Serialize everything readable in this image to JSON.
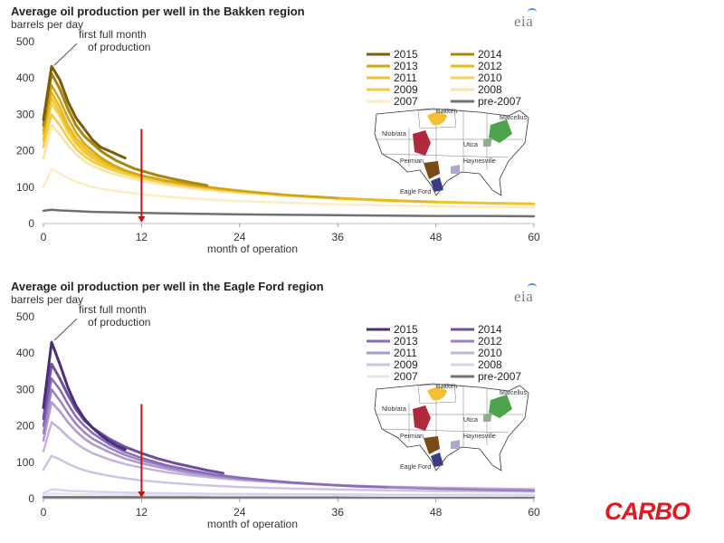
{
  "logo": {
    "text": "CARBO",
    "color": "#e01a22"
  },
  "chart_data": [
    {
      "type": "line",
      "title": "Average oil production per well in the Bakken region",
      "ylabel": "barrels per day",
      "xlabel": "month of operation",
      "source_logo": "eia",
      "xlim": [
        0,
        60
      ],
      "ylim": [
        0,
        500
      ],
      "xticks": [
        0,
        12,
        24,
        36,
        48,
        60
      ],
      "yticks": [
        0,
        100,
        200,
        300,
        400,
        500
      ],
      "annotation": {
        "text_line1": "first full month",
        "text_line2": "of production",
        "x": 1,
        "y": 430
      },
      "marker_line": {
        "x": 12,
        "from": 260,
        "to": 0,
        "color": "#cc1010"
      },
      "legend": {
        "placement": "top-right",
        "columns": 2
      },
      "map": {
        "labels": [
          "Bakken",
          "Marcellus",
          "Niobrara",
          "Utica",
          "Permian",
          "Haynesville",
          "Eagle Ford"
        ]
      },
      "series": [
        {
          "name": "2015",
          "color": "#7a5c0a",
          "width": 3,
          "x": [
            0,
            1,
            2,
            3,
            4,
            5,
            6,
            7,
            8,
            9,
            10
          ],
          "values": [
            285,
            432,
            395,
            335,
            290,
            260,
            230,
            210,
            200,
            190,
            180
          ]
        },
        {
          "name": "2014",
          "color": "#a8860e",
          "width": 3,
          "x": [
            0,
            1,
            2,
            3,
            4,
            5,
            6,
            7,
            8,
            9,
            10,
            11,
            12,
            14,
            16,
            18,
            20
          ],
          "values": [
            270,
            412,
            370,
            315,
            270,
            240,
            220,
            200,
            185,
            172,
            162,
            152,
            145,
            132,
            122,
            113,
            105
          ]
        },
        {
          "name": "2013",
          "color": "#cfa516",
          "width": 2.5,
          "x": [
            0,
            1,
            2,
            3,
            4,
            5,
            6,
            7,
            8,
            9,
            10,
            12,
            15,
            18,
            21,
            24,
            27,
            30,
            33,
            36
          ],
          "values": [
            255,
            380,
            340,
            290,
            250,
            220,
            200,
            182,
            168,
            156,
            146,
            132,
            118,
            107,
            98,
            90,
            84,
            78,
            74,
            70
          ]
        },
        {
          "name": "2012",
          "color": "#e7b91a",
          "width": 2.5,
          "x": [
            0,
            1,
            2,
            3,
            4,
            5,
            6,
            8,
            10,
            12,
            15,
            18,
            21,
            24,
            30,
            36,
            42,
            48
          ],
          "values": [
            245,
            360,
            320,
            270,
            235,
            210,
            190,
            162,
            145,
            132,
            118,
            107,
            98,
            90,
            78,
            70,
            64,
            59
          ]
        },
        {
          "name": "2011",
          "color": "#f0c22c",
          "width": 2.5,
          "x": [
            0,
            1,
            2,
            3,
            4,
            5,
            6,
            8,
            10,
            12,
            15,
            18,
            21,
            24,
            30,
            36,
            42,
            48,
            54,
            60
          ],
          "values": [
            230,
            345,
            305,
            260,
            225,
            200,
            182,
            158,
            142,
            130,
            116,
            105,
            96,
            89,
            78,
            70,
            64,
            59,
            56,
            54
          ]
        },
        {
          "name": "2010",
          "color": "#f5d25a",
          "width": 2.5,
          "x": [
            0,
            1,
            2,
            3,
            4,
            5,
            6,
            8,
            10,
            12,
            15,
            18,
            21,
            24,
            30,
            36,
            42,
            48,
            54,
            60
          ],
          "values": [
            225,
            330,
            295,
            250,
            218,
            195,
            178,
            155,
            140,
            128,
            115,
            104,
            96,
            89,
            78,
            70,
            64,
            60,
            57,
            55
          ]
        },
        {
          "name": "2009",
          "color": "#f3c93e",
          "width": 2.5,
          "x": [
            0,
            1,
            2,
            3,
            4,
            5,
            6,
            8,
            10,
            12,
            15,
            18,
            21,
            24,
            30,
            36,
            42,
            48,
            54,
            60
          ],
          "values": [
            210,
            300,
            270,
            235,
            205,
            185,
            170,
            150,
            136,
            125,
            112,
            102,
            94,
            87,
            77,
            69,
            63,
            59,
            56,
            54
          ]
        },
        {
          "name": "2008",
          "color": "#f9e4a2",
          "width": 2.5,
          "x": [
            0,
            1,
            2,
            3,
            4,
            5,
            6,
            8,
            10,
            12,
            15,
            18,
            21,
            24,
            30,
            36,
            42,
            48,
            54,
            60
          ],
          "values": [
            180,
            270,
            245,
            215,
            190,
            172,
            158,
            140,
            128,
            118,
            106,
            97,
            90,
            84,
            75,
            68,
            62,
            58,
            55,
            53
          ]
        },
        {
          "name": "2007",
          "color": "#fbedc4",
          "width": 2.5,
          "x": [
            0,
            1,
            2,
            3,
            4,
            5,
            6,
            8,
            10,
            12,
            15,
            18,
            21,
            24,
            30,
            36,
            42,
            48,
            54,
            60
          ],
          "values": [
            100,
            150,
            138,
            125,
            115,
            107,
            100,
            92,
            86,
            80,
            74,
            69,
            65,
            62,
            57,
            53,
            50,
            47,
            45,
            44
          ]
        },
        {
          "name": "pre-2007",
          "color": "#707070",
          "width": 2.5,
          "x": [
            0,
            1,
            2,
            3,
            4,
            6,
            8,
            10,
            12,
            15,
            18,
            21,
            24,
            30,
            36,
            42,
            48,
            54,
            60
          ],
          "values": [
            35,
            38,
            36,
            35,
            34,
            32,
            31,
            30,
            29,
            28,
            27,
            26,
            25,
            24,
            23,
            22,
            21,
            21,
            20
          ]
        }
      ]
    },
    {
      "type": "line",
      "title": "Average oil production per well in the Eagle Ford region",
      "ylabel": "barrels per day",
      "xlabel": "month of operation",
      "source_logo": "eia",
      "xlim": [
        0,
        60
      ],
      "ylim": [
        0,
        500
      ],
      "xticks": [
        0,
        12,
        24,
        36,
        48,
        60
      ],
      "yticks": [
        0,
        100,
        200,
        300,
        400,
        500
      ],
      "annotation": {
        "text_line1": "first full month",
        "text_line2": "of production",
        "x": 1,
        "y": 430
      },
      "marker_line": {
        "x": 12,
        "from": 260,
        "to": 0,
        "color": "#cc1010"
      },
      "legend": {
        "placement": "top-right",
        "columns": 2
      },
      "map": {
        "labels": [
          "Bakken",
          "Marcellus",
          "Niobrara",
          "Utica",
          "Permian",
          "Haynesville",
          "Eagle Ford"
        ]
      },
      "series": [
        {
          "name": "2015",
          "color": "#4a2f78",
          "width": 3,
          "x": [
            0,
            1,
            2,
            3,
            4,
            5,
            6,
            7,
            8,
            9,
            10
          ],
          "values": [
            250,
            430,
            370,
            305,
            255,
            220,
            195,
            175,
            158,
            145,
            135
          ]
        },
        {
          "name": "2014",
          "color": "#6e4f9e",
          "width": 3,
          "x": [
            0,
            1,
            2,
            3,
            4,
            5,
            6,
            8,
            10,
            12,
            14,
            16,
            18,
            20,
            22
          ],
          "values": [
            220,
            370,
            330,
            285,
            245,
            215,
            195,
            165,
            142,
            125,
            110,
            98,
            88,
            78,
            70
          ]
        },
        {
          "name": "2013",
          "color": "#8a6cb6",
          "width": 2.5,
          "x": [
            0,
            1,
            2,
            3,
            4,
            5,
            6,
            8,
            10,
            12,
            15,
            18,
            21,
            24,
            27,
            30,
            33,
            36,
            39,
            42
          ],
          "values": [
            200,
            330,
            300,
            260,
            225,
            200,
            180,
            150,
            128,
            112,
            92,
            78,
            66,
            58,
            51,
            45,
            40,
            36,
            33,
            31
          ]
        },
        {
          "name": "2012",
          "color": "#9b81c4",
          "width": 2.5,
          "x": [
            0,
            1,
            2,
            3,
            4,
            5,
            6,
            8,
            10,
            12,
            15,
            18,
            21,
            24,
            30,
            36,
            42,
            48,
            54,
            60
          ],
          "values": [
            180,
            300,
            270,
            235,
            205,
            182,
            165,
            140,
            120,
            105,
            88,
            75,
            64,
            56,
            45,
            37,
            31,
            27,
            24,
            22
          ]
        },
        {
          "name": "2011",
          "color": "#ad98cf",
          "width": 2.5,
          "x": [
            0,
            1,
            2,
            3,
            4,
            5,
            6,
            8,
            10,
            12,
            15,
            18,
            21,
            24,
            30,
            36,
            42,
            48,
            54,
            60
          ],
          "values": [
            160,
            265,
            240,
            210,
            185,
            165,
            150,
            128,
            110,
            97,
            82,
            70,
            61,
            54,
            44,
            37,
            32,
            28,
            25,
            23
          ]
        },
        {
          "name": "2010",
          "color": "#c2b2dc",
          "width": 2.5,
          "x": [
            0,
            1,
            2,
            3,
            4,
            5,
            6,
            8,
            10,
            12,
            15,
            18,
            21,
            24,
            30,
            36,
            42,
            48,
            54,
            60
          ],
          "values": [
            130,
            210,
            192,
            170,
            152,
            137,
            125,
            108,
            95,
            85,
            73,
            64,
            57,
            51,
            43,
            37,
            33,
            30,
            28,
            26
          ]
        },
        {
          "name": "2009",
          "color": "#cfc3e4",
          "width": 2.5,
          "x": [
            0,
            1,
            2,
            3,
            4,
            5,
            6,
            8,
            10,
            12,
            15,
            18,
            21,
            24,
            30,
            36,
            42,
            48,
            54,
            60
          ],
          "values": [
            80,
            118,
            108,
            96,
            86,
            78,
            72,
            63,
            56,
            50,
            44,
            39,
            35,
            32,
            28,
            25,
            23,
            21,
            20,
            19
          ]
        },
        {
          "name": "2008",
          "color": "#dcd3eb",
          "width": 2.5,
          "x": [
            0,
            1,
            2,
            3,
            4,
            6,
            8,
            10,
            12,
            15,
            18,
            21,
            24,
            30,
            36,
            42,
            48,
            54,
            60
          ],
          "values": [
            15,
            25,
            24,
            22,
            21,
            19,
            18,
            17,
            16,
            15,
            14,
            13,
            13,
            12,
            12,
            11,
            11,
            11,
            10
          ]
        },
        {
          "name": "2007",
          "color": "#e8e2f2",
          "width": 2.5,
          "x": [
            0,
            1,
            2,
            3,
            4,
            6,
            8,
            10,
            12,
            15,
            18,
            21,
            24,
            30,
            36,
            42,
            48,
            54,
            60
          ],
          "values": [
            10,
            14,
            13,
            13,
            12,
            12,
            11,
            11,
            10,
            10,
            10,
            9,
            9,
            9,
            9,
            8,
            8,
            8,
            8
          ]
        },
        {
          "name": "pre-2007",
          "color": "#707070",
          "width": 2.5,
          "x": [
            0,
            6,
            12,
            18,
            24,
            30,
            36,
            42,
            48,
            54,
            60
          ],
          "values": [
            4,
            4,
            4,
            4,
            4,
            4,
            4,
            4,
            4,
            4,
            4
          ]
        }
      ]
    }
  ]
}
